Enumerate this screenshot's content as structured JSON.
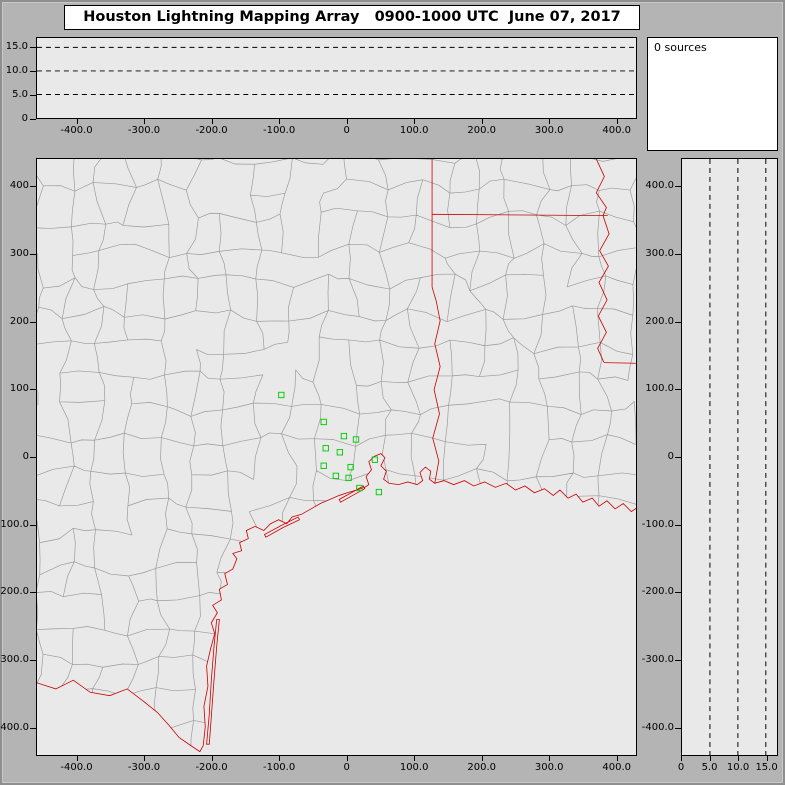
{
  "chart_data": {
    "type": "scatter",
    "title": "Houston Lightning Mapping Array   0900-1000 UTC  June 07, 2017",
    "network_name": "Houston Lightning Mapping Array",
    "time_range_utc": "0900-1000 UTC",
    "date": "June 07, 2017",
    "sources_count": 0,
    "sources_label": "0 sources",
    "points": [],
    "colors": {
      "window_bg": "#b4b4b4",
      "panel_bg": "#e9e9e9",
      "panel_border": "#000000",
      "box_bg": "#ffffff",
      "county_line": "#999999",
      "state_border": "#cc0000",
      "station_marker": "#00cc00",
      "grid_dash": "#000000",
      "text": "#000000"
    },
    "alt_ew_panel": {
      "name": "altitude-vs-east-west",
      "ylim": [
        0,
        17
      ],
      "y_tick_vals": [
        15,
        10,
        5,
        0
      ],
      "y_tick_labels": [
        "15.0",
        "10.0",
        "5.0",
        "0"
      ],
      "dashed_levels": [
        5,
        10,
        15
      ],
      "x_tick_vals": [
        -400,
        -300,
        -200,
        -100,
        0,
        100,
        200,
        300,
        400
      ],
      "x_tick_labels": [
        "-400.0",
        "-300.0",
        "-200.0",
        "-100.0",
        "0",
        "100.0",
        "200.0",
        "300.0",
        "400.0"
      ],
      "points": []
    },
    "map_panel": {
      "name": "plan-view-map",
      "xlim": [
        -460,
        430
      ],
      "ylim": [
        -442,
        442
      ],
      "x_tick_vals": [
        -400,
        -300,
        -200,
        -100,
        0,
        100,
        200,
        300,
        400
      ],
      "x_tick_labels": [
        "-400.0",
        "-300.0",
        "-200.0",
        "-100.0",
        "0",
        "100.0",
        "200.0",
        "300.0",
        "400.0"
      ],
      "y_tick_vals": [
        400,
        300,
        200,
        100,
        0,
        -100,
        -200,
        -300,
        -400
      ],
      "y_tick_labels": [
        "400",
        "300",
        "200",
        "100",
        "0",
        "-100.0",
        "-200.0",
        "-300.0",
        "-400.0"
      ],
      "stations_xy_km": [
        [
          -97,
          92
        ],
        [
          -34,
          52
        ],
        [
          -4,
          31
        ],
        [
          14,
          26
        ],
        [
          -31,
          13
        ],
        [
          -10,
          7
        ],
        [
          -34,
          -13
        ],
        [
          6,
          -15
        ],
        [
          -16,
          -28
        ],
        [
          3,
          -31
        ],
        [
          19,
          -46
        ],
        [
          42,
          -4
        ],
        [
          48,
          -52
        ]
      ],
      "points": []
    },
    "alt_ns_panel": {
      "name": "altitude-vs-north-south",
      "xlim": [
        0,
        17
      ],
      "x_tick_vals": [
        0,
        5,
        10,
        15
      ],
      "x_tick_labels": [
        "0",
        "5.0",
        "10.0",
        "15.0"
      ],
      "dashed_levels": [
        5,
        10,
        15
      ],
      "y_tick_vals": [
        400,
        300,
        200,
        100,
        0,
        -100,
        -200,
        -300,
        -400
      ],
      "y_tick_labels": [
        "400.0",
        "300.0",
        "200.0",
        "100.0",
        "0",
        "-100.0",
        "-200.0",
        "-300.0",
        "-400.0"
      ],
      "points": []
    }
  }
}
